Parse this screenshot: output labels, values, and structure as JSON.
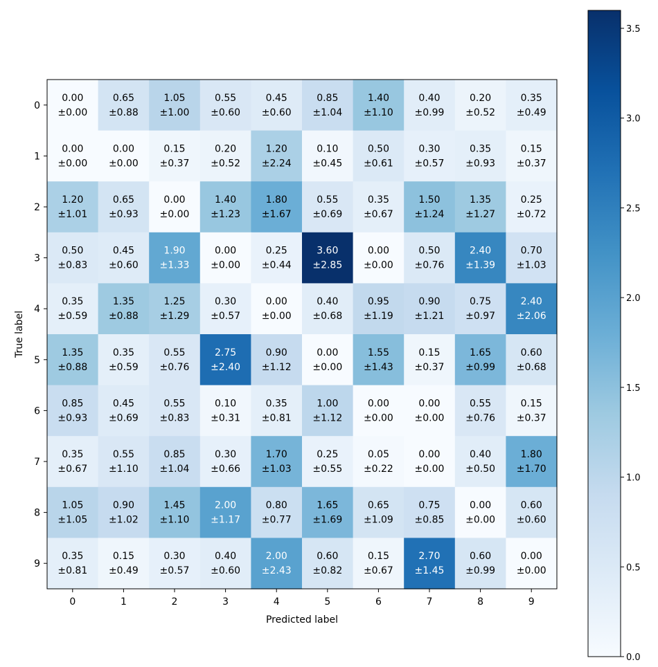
{
  "chart_data": {
    "type": "heatmap",
    "title": "",
    "xlabel": "Predicted label",
    "ylabel": "True label",
    "x_categories": [
      "0",
      "1",
      "2",
      "3",
      "4",
      "5",
      "6",
      "7",
      "8",
      "9"
    ],
    "y_categories": [
      "0",
      "1",
      "2",
      "3",
      "4",
      "5",
      "6",
      "7",
      "8",
      "9"
    ],
    "values": [
      [
        0.0,
        0.65,
        1.05,
        0.55,
        0.45,
        0.85,
        1.4,
        0.4,
        0.2,
        0.35
      ],
      [
        0.0,
        0.0,
        0.15,
        0.2,
        1.2,
        0.1,
        0.5,
        0.3,
        0.35,
        0.15
      ],
      [
        1.2,
        0.65,
        0.0,
        1.4,
        1.8,
        0.55,
        0.35,
        1.5,
        1.35,
        0.25
      ],
      [
        0.5,
        0.45,
        1.9,
        0.0,
        0.25,
        3.6,
        0.0,
        0.5,
        2.4,
        0.7
      ],
      [
        0.35,
        1.35,
        1.25,
        0.3,
        0.0,
        0.4,
        0.95,
        0.9,
        0.75,
        2.4
      ],
      [
        1.35,
        0.35,
        0.55,
        2.75,
        0.9,
        0.0,
        1.55,
        0.15,
        1.65,
        0.6
      ],
      [
        0.85,
        0.45,
        0.55,
        0.1,
        0.35,
        1.0,
        0.0,
        0.0,
        0.55,
        0.15
      ],
      [
        0.35,
        0.55,
        0.85,
        0.3,
        1.7,
        0.25,
        0.05,
        0.0,
        0.4,
        1.8
      ],
      [
        1.05,
        0.9,
        1.45,
        2.0,
        0.8,
        1.65,
        0.65,
        0.75,
        0.0,
        0.6
      ],
      [
        0.35,
        0.15,
        0.3,
        0.4,
        2.0,
        0.6,
        0.15,
        2.7,
        0.6,
        0.0
      ]
    ],
    "errors": [
      [
        0.0,
        0.88,
        1.0,
        0.6,
        0.6,
        1.04,
        1.1,
        0.99,
        0.52,
        0.49
      ],
      [
        0.0,
        0.0,
        0.37,
        0.52,
        2.24,
        0.45,
        0.61,
        0.57,
        0.93,
        0.37
      ],
      [
        1.01,
        0.93,
        0.0,
        1.23,
        1.67,
        0.69,
        0.67,
        1.24,
        1.27,
        0.72
      ],
      [
        0.83,
        0.6,
        1.33,
        0.0,
        0.44,
        2.85,
        0.0,
        0.76,
        1.39,
        1.03
      ],
      [
        0.59,
        0.88,
        1.29,
        0.57,
        0.0,
        0.68,
        1.19,
        1.21,
        0.97,
        2.06
      ],
      [
        0.88,
        0.59,
        0.76,
        2.4,
        1.12,
        0.0,
        1.43,
        0.37,
        0.99,
        0.68
      ],
      [
        0.93,
        0.69,
        0.83,
        0.31,
        0.81,
        1.12,
        0.0,
        0.0,
        0.76,
        0.37
      ],
      [
        0.67,
        1.1,
        1.04,
        0.66,
        1.03,
        0.55,
        0.22,
        0.0,
        0.5,
        1.7
      ],
      [
        1.05,
        1.02,
        1.1,
        1.17,
        0.77,
        1.69,
        1.09,
        0.85,
        0.0,
        0.6
      ],
      [
        0.81,
        0.49,
        0.57,
        0.6,
        2.43,
        0.82,
        0.67,
        1.45,
        0.99,
        0.0
      ]
    ],
    "value_format": "two-decimal mean over ±two-decimal std",
    "colormap": "Blues",
    "colorbar": {
      "vmin": 0.0,
      "vmax": 3.6,
      "ticks": [
        0.0,
        0.5,
        1.0,
        1.5,
        2.0,
        2.5,
        3.0,
        3.5
      ],
      "tick_labels": [
        "0.0",
        "0.5",
        "1.0",
        "1.5",
        "2.0",
        "2.5",
        "3.0",
        "3.5"
      ],
      "placement": "right"
    },
    "text_color_dark": "#000000",
    "text_color_light": "#ffffff",
    "grid": false
  }
}
